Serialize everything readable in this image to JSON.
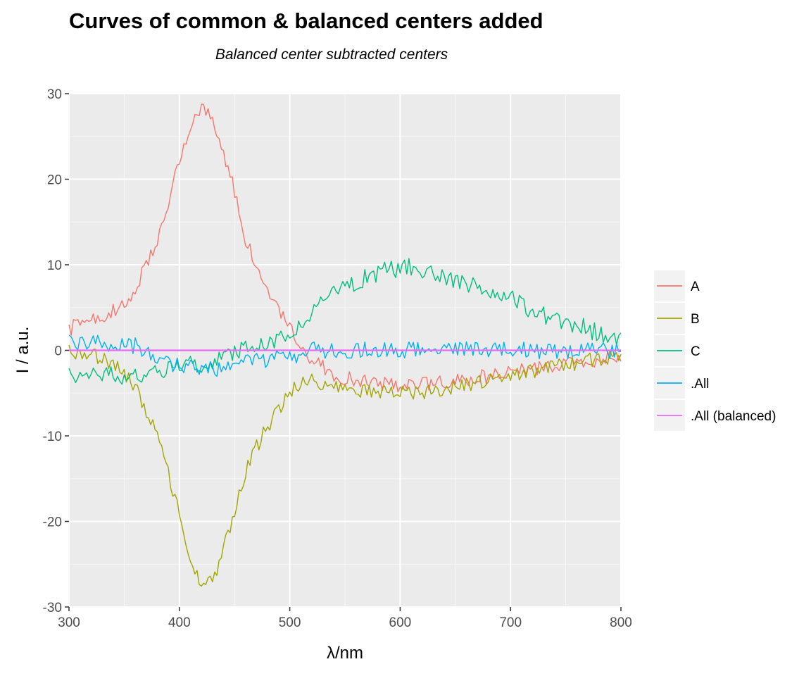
{
  "chart_data": {
    "type": "line",
    "title": "Curves of common & balanced centers added",
    "subtitle": "Balanced center subtracted centers",
    "xlabel": "λ/nm",
    "ylabel": "I / a.u.",
    "xlim": [
      300,
      800
    ],
    "ylim": [
      -30,
      30
    ],
    "x_ticks": [
      300,
      400,
      500,
      600,
      700,
      800
    ],
    "y_ticks": [
      -30,
      -20,
      -10,
      0,
      10,
      20,
      30
    ],
    "grid": true,
    "legend_position": "right",
    "panel_background": "#ebebeb",
    "x_step": 2,
    "series": [
      {
        "name": "A",
        "color": "#F8766D",
        "anchors": [
          [
            300,
            2.5
          ],
          [
            340,
            4.5
          ],
          [
            360,
            7
          ],
          [
            380,
            13
          ],
          [
            400,
            22
          ],
          [
            412,
            27
          ],
          [
            422,
            28.5
          ],
          [
            432,
            26.5
          ],
          [
            445,
            21
          ],
          [
            460,
            13
          ],
          [
            475,
            8
          ],
          [
            490,
            4.5
          ],
          [
            505,
            1.5
          ],
          [
            520,
            -1
          ],
          [
            540,
            -3
          ],
          [
            580,
            -4
          ],
          [
            620,
            -4
          ],
          [
            660,
            -3.5
          ],
          [
            700,
            -2.5
          ],
          [
            740,
            -2
          ],
          [
            780,
            -1
          ],
          [
            800,
            -0.5
          ]
        ],
        "noise": 0.9
      },
      {
        "name": "B",
        "color": "#A3A500",
        "anchors": [
          [
            300,
            0
          ],
          [
            320,
            -0.5
          ],
          [
            340,
            -1.5
          ],
          [
            360,
            -4
          ],
          [
            380,
            -10
          ],
          [
            400,
            -19
          ],
          [
            412,
            -25
          ],
          [
            422,
            -28
          ],
          [
            432,
            -26.5
          ],
          [
            445,
            -21
          ],
          [
            460,
            -14
          ],
          [
            475,
            -10
          ],
          [
            490,
            -7
          ],
          [
            505,
            -4
          ],
          [
            520,
            -3.5
          ],
          [
            540,
            -4.5
          ],
          [
            580,
            -5
          ],
          [
            620,
            -5
          ],
          [
            660,
            -4
          ],
          [
            700,
            -3
          ],
          [
            740,
            -2
          ],
          [
            780,
            -1
          ],
          [
            800,
            -0.5
          ]
        ],
        "noise": 0.9
      },
      {
        "name": "C",
        "color": "#00BF7D",
        "anchors": [
          [
            300,
            -3
          ],
          [
            340,
            -3
          ],
          [
            380,
            -2.5
          ],
          [
            420,
            -1.5
          ],
          [
            460,
            0
          ],
          [
            490,
            1
          ],
          [
            510,
            3
          ],
          [
            530,
            6
          ],
          [
            560,
            8
          ],
          [
            590,
            9.5
          ],
          [
            610,
            9.8
          ],
          [
            640,
            8.5
          ],
          [
            670,
            7.5
          ],
          [
            700,
            6
          ],
          [
            730,
            4
          ],
          [
            760,
            3
          ],
          [
            780,
            2
          ],
          [
            800,
            1
          ]
        ],
        "noise": 1.1
      },
      {
        "name": ".All",
        "color": "#00B0F6",
        "anchors": [
          [
            300,
            0.8
          ],
          [
            330,
            0.8
          ],
          [
            350,
            1
          ],
          [
            370,
            0
          ],
          [
            390,
            -1.5
          ],
          [
            420,
            -2
          ],
          [
            440,
            -2.5
          ],
          [
            460,
            -1.5
          ],
          [
            480,
            -1
          ],
          [
            500,
            -1
          ],
          [
            520,
            0
          ],
          [
            560,
            0
          ],
          [
            600,
            0
          ],
          [
            700,
            0
          ],
          [
            800,
            0
          ]
        ],
        "noise": 1.0
      },
      {
        "name": ".All (balanced)",
        "color": "#E76BF3",
        "anchors": [
          [
            300,
            0
          ],
          [
            800,
            0
          ]
        ],
        "noise": 0
      }
    ]
  }
}
